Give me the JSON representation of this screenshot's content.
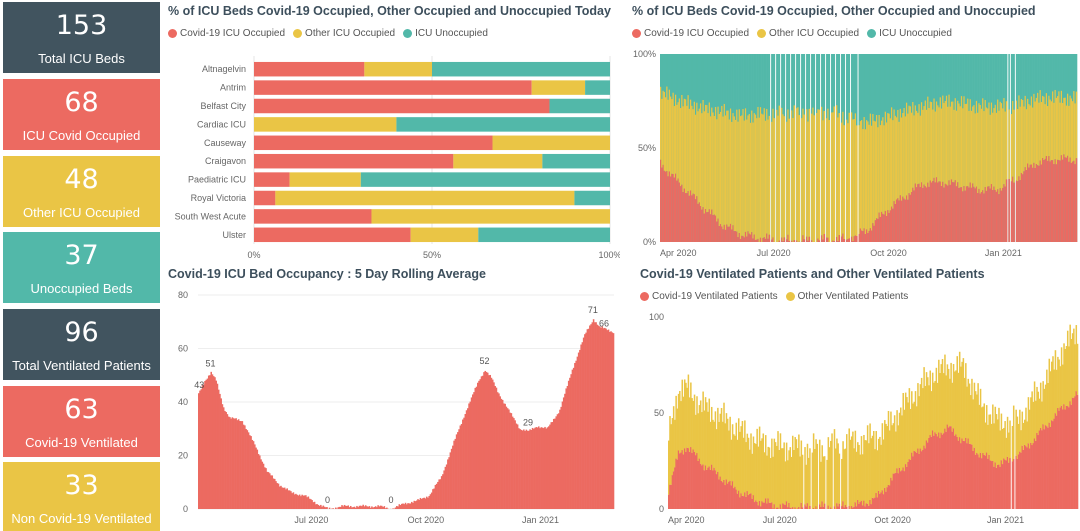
{
  "colors": {
    "covid": "#ec6a61",
    "other": "#eac545",
    "unoccupied": "#52b8a9",
    "dark": "#41545f"
  },
  "kpis": [
    {
      "value": "153",
      "label": "Total ICU Beds",
      "color": "#41545f"
    },
    {
      "value": "68",
      "label": "ICU Covid Occupied",
      "color": "#ec6a61"
    },
    {
      "value": "48",
      "label": "Other ICU Occupied",
      "color": "#eac545"
    },
    {
      "value": "37",
      "label": "Unoccupied Beds",
      "color": "#52b8a9"
    },
    {
      "value": "96",
      "label": "Total Ventilated Patients",
      "color": "#41545f"
    },
    {
      "value": "63",
      "label": "Covid-19 Ventilated",
      "color": "#ec6a61"
    },
    {
      "value": "33",
      "label": "Non Covid-19 Ventilated",
      "color": "#eac545"
    }
  ],
  "chart_data": [
    {
      "type": "bar",
      "orientation": "horizontal-stacked-100",
      "title": "% of ICU Beds Covid-19 Occupied, Other Occupied and Unoccupied Today",
      "categories": [
        "Altnagelvin",
        "Antrim",
        "Belfast City",
        "Cardiac ICU",
        "Causeway",
        "Craigavon",
        "Paediatric ICU",
        "Royal Victoria",
        "South West Acute",
        "Ulster"
      ],
      "series": [
        {
          "name": "Covid-19 ICU Occupied",
          "values": [
            31,
            78,
            83,
            0,
            67,
            56,
            10,
            6,
            33,
            44
          ]
        },
        {
          "name": "Other ICU Occupied",
          "values": [
            19,
            15,
            0,
            40,
            33,
            25,
            20,
            84,
            67,
            19
          ]
        },
        {
          "name": "ICU Unoccupied",
          "values": [
            50,
            7,
            17,
            60,
            0,
            19,
            70,
            10,
            0,
            37
          ]
        }
      ],
      "x_ticks": [
        "0%",
        "50%",
        "100%"
      ],
      "xlim": [
        0,
        100
      ],
      "legend": "top-left"
    },
    {
      "type": "bar",
      "orientation": "vertical-stacked-100",
      "title": "% of ICU Beds Covid-19 Occupied, Other Occupied and Unoccupied",
      "x_start": "2020-04-01",
      "x_end": "2021-03-01",
      "x_ticks": [
        "Apr 2020",
        "Jul 2020",
        "Oct 2020",
        "Jan 2021"
      ],
      "y_ticks": [
        "0%",
        "50%",
        "100%"
      ],
      "ylim": [
        0,
        100
      ],
      "series_names": [
        "Covid-19 ICU Occupied",
        "Other ICU Occupied",
        "ICU Unoccupied"
      ],
      "covid_pct_keypoints": [
        [
          0,
          42
        ],
        [
          8,
          36
        ],
        [
          20,
          28
        ],
        [
          35,
          18
        ],
        [
          50,
          9
        ],
        [
          65,
          4
        ],
        [
          80,
          2
        ],
        [
          95,
          1
        ],
        [
          120,
          1
        ],
        [
          150,
          2
        ],
        [
          165,
          6
        ],
        [
          180,
          16
        ],
        [
          195,
          24
        ],
        [
          210,
          31
        ],
        [
          225,
          32
        ],
        [
          240,
          30
        ],
        [
          255,
          28
        ],
        [
          270,
          28
        ],
        [
          285,
          34
        ],
        [
          300,
          42
        ],
        [
          315,
          44
        ],
        [
          334,
          44
        ]
      ],
      "other_pct_keypoints": [
        [
          0,
          38
        ],
        [
          20,
          46
        ],
        [
          50,
          60
        ],
        [
          80,
          66
        ],
        [
          110,
          68
        ],
        [
          140,
          67
        ],
        [
          160,
          60
        ],
        [
          180,
          50
        ],
        [
          210,
          41
        ],
        [
          240,
          44
        ],
        [
          270,
          44
        ],
        [
          300,
          34
        ],
        [
          334,
          32
        ]
      ],
      "gap_days": [
        88,
        92,
        96,
        100,
        104,
        108,
        112,
        116,
        120,
        124,
        128,
        132,
        136,
        140,
        144,
        148,
        152,
        158,
        278,
        280,
        284
      ],
      "legend": "top-left"
    },
    {
      "type": "bar",
      "orientation": "vertical",
      "title": "Covid-19 ICU Bed Occupancy : 5 Day Rolling Average",
      "x_start": "2020-04-01",
      "x_end": "2021-03-01",
      "x_ticks": [
        "Jul 2020",
        "Oct 2020",
        "Jan 2021"
      ],
      "y_ticks": [
        0,
        20,
        40,
        60,
        80
      ],
      "ylim": [
        0,
        80
      ],
      "keypoints": [
        [
          0,
          43
        ],
        [
          5,
          48
        ],
        [
          10,
          51
        ],
        [
          14,
          48
        ],
        [
          20,
          38
        ],
        [
          25,
          34
        ],
        [
          35,
          33
        ],
        [
          45,
          24
        ],
        [
          55,
          14
        ],
        [
          65,
          9
        ],
        [
          75,
          6
        ],
        [
          85,
          5
        ],
        [
          95,
          2
        ],
        [
          104,
          0
        ],
        [
          115,
          1
        ],
        [
          125,
          1
        ],
        [
          135,
          1
        ],
        [
          145,
          1
        ],
        [
          155,
          0
        ],
        [
          165,
          2
        ],
        [
          175,
          3
        ],
        [
          185,
          5
        ],
        [
          195,
          12
        ],
        [
          205,
          25
        ],
        [
          215,
          37
        ],
        [
          225,
          48
        ],
        [
          230,
          52
        ],
        [
          235,
          49
        ],
        [
          240,
          44
        ],
        [
          250,
          36
        ],
        [
          258,
          30
        ],
        [
          265,
          29
        ],
        [
          272,
          31
        ],
        [
          280,
          30
        ],
        [
          290,
          37
        ],
        [
          300,
          52
        ],
        [
          310,
          65
        ],
        [
          317,
          71
        ],
        [
          322,
          68
        ],
        [
          334,
          66
        ]
      ],
      "labels": [
        {
          "day": 1,
          "value": 43,
          "text": "43"
        },
        {
          "day": 10,
          "value": 51,
          "text": "51"
        },
        {
          "day": 104,
          "value": 0,
          "text": "0"
        },
        {
          "day": 155,
          "value": 0,
          "text": "0"
        },
        {
          "day": 230,
          "value": 52,
          "text": "52"
        },
        {
          "day": 265,
          "value": 29,
          "text": "29"
        },
        {
          "day": 317,
          "value": 71,
          "text": "71"
        },
        {
          "day": 326,
          "value": 66,
          "text": "66"
        }
      ]
    },
    {
      "type": "bar",
      "orientation": "vertical-stacked",
      "title": "Covid-19 Ventilated Patients and Other Ventilated Patients",
      "x_start": "2020-04-01",
      "x_end": "2021-03-01",
      "x_ticks": [
        "Apr 2020",
        "Jul 2020",
        "Oct 2020",
        "Jan 2021"
      ],
      "y_ticks": [
        0,
        50,
        100
      ],
      "ylim": [
        0,
        100
      ],
      "series_names": [
        "Covid-19 Ventilated Patients",
        "Other Ventilated Patients"
      ],
      "covid_keypoints": [
        [
          0,
          10
        ],
        [
          8,
          28
        ],
        [
          15,
          33
        ],
        [
          25,
          25
        ],
        [
          40,
          18
        ],
        [
          55,
          10
        ],
        [
          70,
          5
        ],
        [
          85,
          2
        ],
        [
          100,
          1
        ],
        [
          130,
          1
        ],
        [
          155,
          2
        ],
        [
          170,
          6
        ],
        [
          185,
          18
        ],
        [
          200,
          28
        ],
        [
          215,
          38
        ],
        [
          228,
          42
        ],
        [
          240,
          36
        ],
        [
          255,
          28
        ],
        [
          270,
          23
        ],
        [
          285,
          28
        ],
        [
          300,
          38
        ],
        [
          320,
          52
        ],
        [
          334,
          60
        ]
      ],
      "other_keypoints": [
        [
          0,
          28
        ],
        [
          8,
          34
        ],
        [
          15,
          30
        ],
        [
          30,
          30
        ],
        [
          50,
          32
        ],
        [
          70,
          31
        ],
        [
          100,
          31
        ],
        [
          120,
          30
        ],
        [
          140,
          33
        ],
        [
          160,
          33
        ],
        [
          180,
          30
        ],
        [
          200,
          32
        ],
        [
          215,
          32
        ],
        [
          228,
          32
        ],
        [
          240,
          38
        ],
        [
          255,
          26
        ],
        [
          270,
          22
        ],
        [
          285,
          18
        ],
        [
          300,
          22
        ],
        [
          320,
          30
        ],
        [
          334,
          34
        ]
      ],
      "gap_days": [
        110,
        116,
        122,
        128,
        134,
        140,
        146,
        279,
        282
      ],
      "legend": "top-left"
    }
  ]
}
